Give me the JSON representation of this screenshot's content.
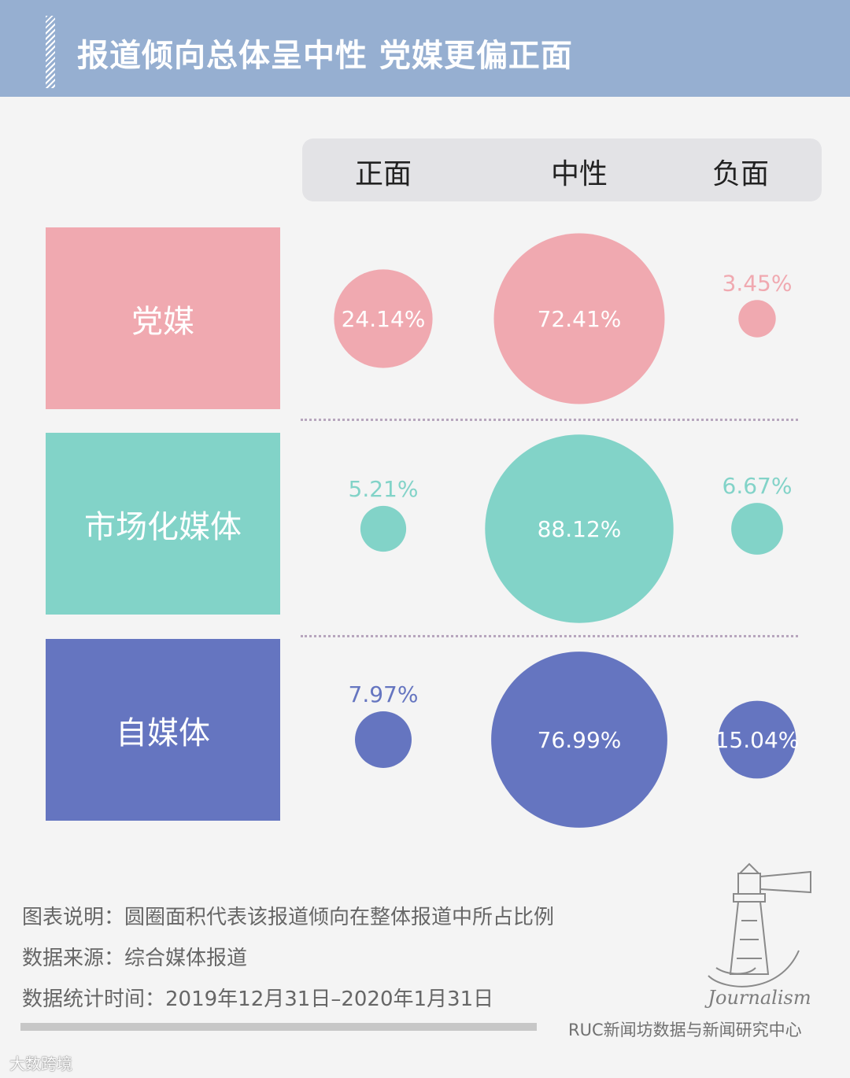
{
  "header": {
    "title": "报道倾向总体呈中性 党媒更偏正面"
  },
  "columns": [
    "正面",
    "中性",
    "负面"
  ],
  "colors": {
    "党媒": "#f0a9b0",
    "市场化媒体": "#82d3c8",
    "自媒体": "#6575c0",
    "header": "#96afd1"
  },
  "chart_data": {
    "type": "bubble",
    "title": "报道倾向总体呈中性 党媒更偏正面",
    "columns": [
      "正面",
      "中性",
      "负面"
    ],
    "rows": [
      {
        "name": "党媒",
        "color": "#f0a9b0",
        "values": [
          24.14,
          72.41,
          3.45
        ],
        "labels": [
          "24.14%",
          "72.41%",
          "3.45%"
        ]
      },
      {
        "name": "市场化媒体",
        "color": "#82d3c8",
        "values": [
          5.21,
          88.12,
          6.67
        ],
        "labels": [
          "5.21%",
          "88.12%",
          "6.67%"
        ]
      },
      {
        "name": "自媒体",
        "color": "#6575c0",
        "values": [
          7.97,
          76.99,
          15.04
        ],
        "labels": [
          "7.97%",
          "76.99%",
          "15.04%"
        ]
      }
    ],
    "size_encoding": "area"
  },
  "notes": {
    "description": "图表说明：圆圈面积代表该报道倾向在整体报道中所占比例",
    "source": "数据来源：综合媒体报道",
    "period": "数据统计时间：2019年12月31日–2020年1月31日"
  },
  "logo": {
    "text": "Journalism"
  },
  "credit": "RUC新闻坊数据与新闻研究中心",
  "watermark": "大数跨境"
}
